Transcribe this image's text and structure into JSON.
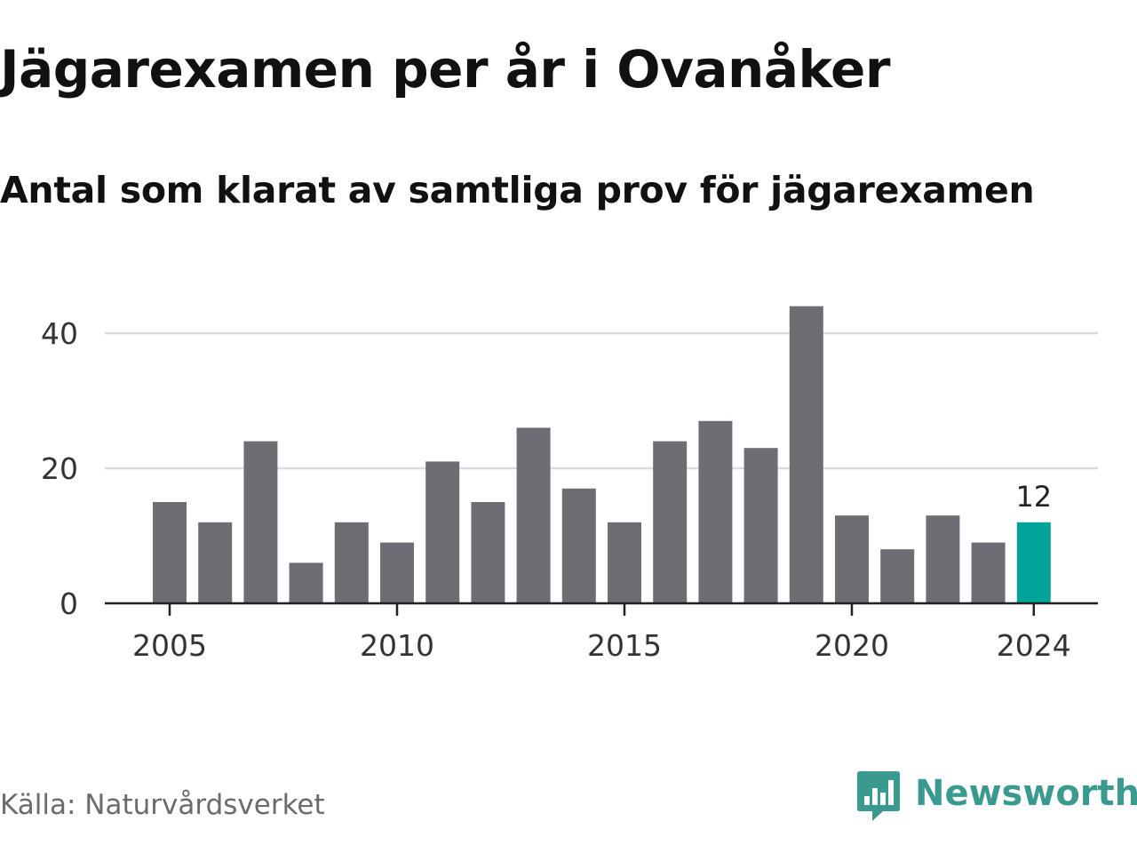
{
  "title": "Jägarexamen per år i Ovanåker",
  "subtitle": "Antal som klarat av samtliga prov för jägarexamen",
  "source": "Källa: Naturvårdsverket",
  "brand": {
    "name": "Newsworthy",
    "icon": "newsworthy-logo-icon",
    "color": "#3a9a8f"
  },
  "colors": {
    "bar": "#6e6d73",
    "highlight": "#00a39a",
    "grid": "#dcdcdc",
    "axis": "#222222",
    "tick_text": "#333333"
  },
  "chart_data": {
    "type": "bar",
    "x": [
      2005,
      2006,
      2007,
      2008,
      2009,
      2010,
      2011,
      2012,
      2013,
      2014,
      2015,
      2016,
      2017,
      2018,
      2019,
      2020,
      2021,
      2022,
      2023,
      2024
    ],
    "values": [
      15,
      12,
      24,
      6,
      12,
      9,
      21,
      15,
      26,
      17,
      12,
      24,
      27,
      23,
      44,
      13,
      8,
      13,
      9,
      12
    ],
    "highlight_index": 19,
    "data_labels": [
      {
        "index": 19,
        "text": "12"
      }
    ],
    "title": "Jägarexamen per år i Ovanåker",
    "subtitle": "Antal som klarat av samtliga prov för jägarexamen",
    "xlabel": "",
    "ylabel": "",
    "xticks": [
      "2005",
      "2010",
      "2015",
      "2020",
      "2024"
    ],
    "yticks": [
      "0",
      "20",
      "40"
    ],
    "ylim": [
      0,
      46
    ],
    "grid": true,
    "legend": "none"
  }
}
